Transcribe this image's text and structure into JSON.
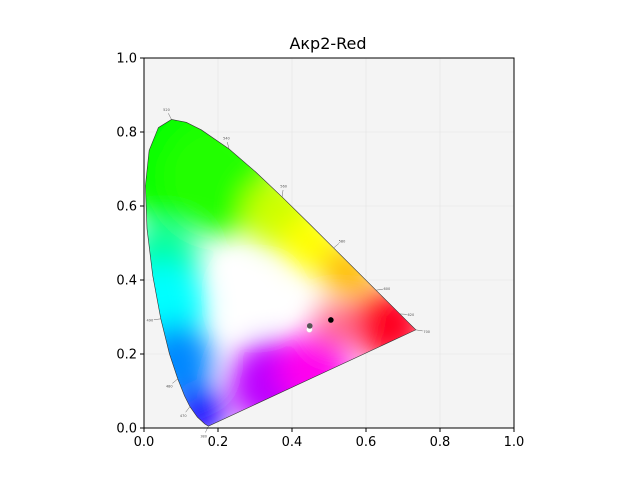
{
  "chart_data": {
    "type": "scatter",
    "title": "Aкp2-Red",
    "xlabel": "",
    "ylabel": "",
    "xlim": [
      0.0,
      1.0
    ],
    "ylim": [
      0.0,
      1.0
    ],
    "x_ticks": [
      "0.0",
      "0.2",
      "0.4",
      "0.6",
      "0.8",
      "1.0"
    ],
    "y_ticks": [
      "0.0",
      "0.2",
      "0.4",
      "0.6",
      "0.8",
      "1.0"
    ],
    "grid": true,
    "background_color": "#f4f4f4",
    "diagram": "CIE 1931 chromaticity diagram",
    "spectral_locus": [
      {
        "nm": 380,
        "x": 0.1741,
        "y": 0.005
      },
      {
        "nm": 440,
        "x": 0.1644,
        "y": 0.0109
      },
      {
        "nm": 460,
        "x": 0.144,
        "y": 0.0297
      },
      {
        "nm": 470,
        "x": 0.1241,
        "y": 0.0578
      },
      {
        "nm": 475,
        "x": 0.1096,
        "y": 0.0868
      },
      {
        "nm": 480,
        "x": 0.0913,
        "y": 0.1327
      },
      {
        "nm": 485,
        "x": 0.0687,
        "y": 0.2007
      },
      {
        "nm": 490,
        "x": 0.0454,
        "y": 0.295
      },
      {
        "nm": 495,
        "x": 0.0235,
        "y": 0.4127
      },
      {
        "nm": 500,
        "x": 0.0082,
        "y": 0.5384
      },
      {
        "nm": 505,
        "x": 0.0039,
        "y": 0.6548
      },
      {
        "nm": 510,
        "x": 0.0139,
        "y": 0.7502
      },
      {
        "nm": 515,
        "x": 0.0389,
        "y": 0.812
      },
      {
        "nm": 520,
        "x": 0.0743,
        "y": 0.8338
      },
      {
        "nm": 525,
        "x": 0.1142,
        "y": 0.8262
      },
      {
        "nm": 530,
        "x": 0.1547,
        "y": 0.8059
      },
      {
        "nm": 540,
        "x": 0.2296,
        "y": 0.7543
      },
      {
        "nm": 550,
        "x": 0.3016,
        "y": 0.6923
      },
      {
        "nm": 560,
        "x": 0.3731,
        "y": 0.6245
      },
      {
        "nm": 570,
        "x": 0.4441,
        "y": 0.5547
      },
      {
        "nm": 580,
        "x": 0.5125,
        "y": 0.4866
      },
      {
        "nm": 590,
        "x": 0.5752,
        "y": 0.4242
      },
      {
        "nm": 600,
        "x": 0.627,
        "y": 0.3725
      },
      {
        "nm": 610,
        "x": 0.6658,
        "y": 0.334
      },
      {
        "nm": 620,
        "x": 0.6915,
        "y": 0.3083
      },
      {
        "nm": 640,
        "x": 0.719,
        "y": 0.2809
      },
      {
        "nm": 700,
        "x": 0.7347,
        "y": 0.2653
      }
    ],
    "wavelength_labels": [
      {
        "nm": "380",
        "x": 0.1741,
        "y": 0.005
      },
      {
        "nm": "470",
        "x": 0.1241,
        "y": 0.0578
      },
      {
        "nm": "480",
        "x": 0.0913,
        "y": 0.1327
      },
      {
        "nm": "490",
        "x": 0.0454,
        "y": 0.295
      },
      {
        "nm": "520",
        "x": 0.0743,
        "y": 0.8338
      },
      {
        "nm": "540",
        "x": 0.2296,
        "y": 0.7543
      },
      {
        "nm": "560",
        "x": 0.3731,
        "y": 0.6245
      },
      {
        "nm": "580",
        "x": 0.5125,
        "y": 0.4866
      },
      {
        "nm": "600",
        "x": 0.627,
        "y": 0.3725
      },
      {
        "nm": "620",
        "x": 0.6915,
        "y": 0.3083
      },
      {
        "nm": "700",
        "x": 0.7347,
        "y": 0.2653
      }
    ],
    "points": [
      {
        "x": 0.505,
        "y": 0.292,
        "color": "#000000"
      },
      {
        "x": 0.447,
        "y": 0.266,
        "color": "#ffffff"
      },
      {
        "x": 0.448,
        "y": 0.276,
        "color": "#555555"
      }
    ]
  }
}
